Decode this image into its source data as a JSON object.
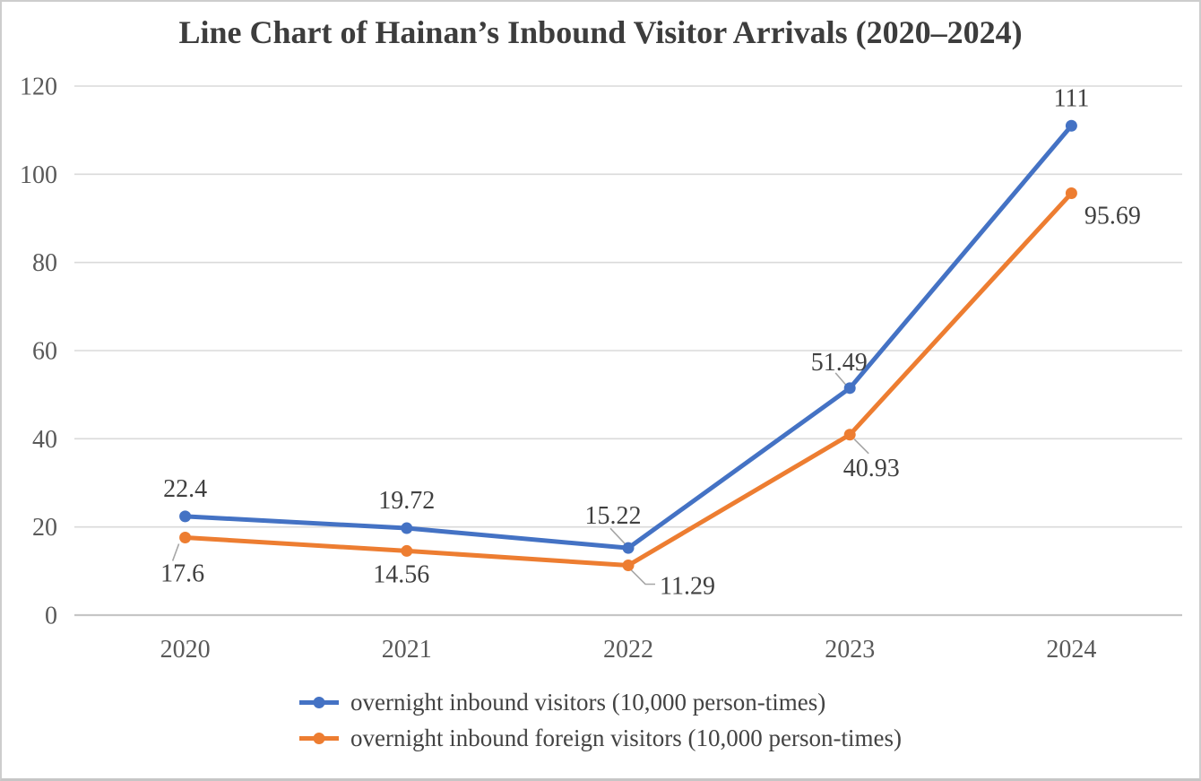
{
  "chart_data": {
    "type": "line",
    "title": "Line Chart of Hainan’s Inbound Visitor Arrivals (2020–2024)",
    "categories": [
      "2020",
      "2021",
      "2022",
      "2023",
      "2024"
    ],
    "series": [
      {
        "name": "overnight inbound visitors (10,000 person-times)",
        "color": "#4472C4",
        "values": [
          22.4,
          19.72,
          15.22,
          51.49,
          111
        ],
        "labels": [
          "22.4",
          "19.72",
          "15.22",
          "51.49",
          "111"
        ]
      },
      {
        "name": "overnight inbound foreign visitors (10,000 person-times)",
        "color": "#ED7D31",
        "values": [
          17.6,
          14.56,
          11.29,
          40.93,
          95.69
        ],
        "labels": [
          "17.6",
          "14.56",
          "11.29",
          "40.93",
          "95.69"
        ]
      }
    ],
    "xlabel": "",
    "ylabel": "",
    "ylim": [
      0,
      120
    ],
    "y_ticks": [
      "0",
      "20",
      "40",
      "60",
      "80",
      "100",
      "120"
    ],
    "grid": true,
    "legend_position": "bottom"
  },
  "style": {
    "background": "#ffffff",
    "frame_border": "#cdcdcd",
    "gridline": "#dadada",
    "axis_line": "#c6c6c6",
    "tick_label": "#595959",
    "data_label": "#404040",
    "title_color": "#3d3d3d",
    "legend_text": "#434343",
    "leader_line": "#a6a6a6"
  }
}
